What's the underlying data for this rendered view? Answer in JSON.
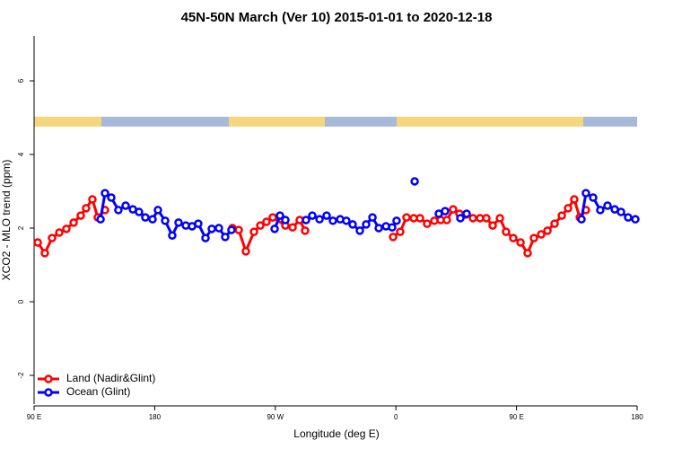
{
  "chart_data": {
    "type": "line",
    "title": "45N-50N March (Ver 10)   2015-01-01 to 2020-12-18",
    "x_label": "Longitude (deg E)",
    "y_label": "XCO2 - MLO trend (ppm)",
    "xlim": [
      90,
      540
    ],
    "ylim": [
      -2.78,
      7.22
    ],
    "xticks": [
      {
        "value": 90,
        "label": "90 E"
      },
      180,
      {
        "value": 270,
        "label": "90 W"
      },
      {
        "value": 360,
        "label": "0"
      },
      {
        "value": 450,
        "label": "90 E"
      },
      {
        "value": 540,
        "label": "180"
      }
    ],
    "yticks": [
      -2,
      0,
      2,
      4,
      6
    ],
    "legend": "bottom-left",
    "series": [
      {
        "name": "Land (Nadir&Glint)",
        "color": "#ff0000",
        "x": [
          92.7,
          98.0,
          103.4,
          108.8,
          114.1,
          119.5,
          124.8,
          128.8,
          133.5,
          137.5,
          142.9,
          null,
          238.0,
          242.7,
          248.0,
          254.1,
          258.8,
          263.4,
          268.1,
          277.5,
          282.9,
          288.2,
          292.2,
          null,
          357.9,
          363.2,
          367.9,
          373.3,
          378.0,
          383.3,
          388.7,
          393.4,
          398.0,
          402.7,
          407.4,
          412.1,
          417.5,
          422.8,
          427.5,
          432.2,
          437.6,
          442.2,
          447.6,
          453.0,
          458.3,
          463.0,
          468.4,
          473.1,
          478.4,
          483.8,
          488.5,
          493.1,
          497.2,
          501.8
        ],
        "values": [
          1.61,
          1.32,
          1.73,
          1.88,
          1.98,
          2.15,
          2.34,
          2.54,
          2.78,
          2.29,
          2.49,
          null,
          2.0,
          1.95,
          1.37,
          1.9,
          2.07,
          2.17,
          2.29,
          2.07,
          2.02,
          2.22,
          1.93,
          null,
          1.76,
          1.9,
          2.29,
          2.27,
          2.27,
          2.12,
          2.2,
          2.22,
          2.22,
          2.51,
          2.39,
          2.37,
          2.27,
          2.27,
          2.27,
          2.07,
          2.27,
          1.9,
          1.73,
          1.61,
          1.32,
          1.73,
          1.83,
          1.93,
          2.12,
          2.34,
          2.54,
          2.78,
          2.29,
          2.49
        ]
      },
      {
        "name": "Ocean (Glint)",
        "color": "#0000ff",
        "x": [
          139.6,
          142.9,
          147.6,
          152.9,
          158.3,
          163.7,
          168.3,
          173.0,
          178.4,
          182.4,
          187.8,
          193.1,
          197.8,
          203.2,
          207.9,
          212.5,
          217.9,
          222.6,
          227.9,
          232.6,
          237.3,
          null,
          269.5,
          273.5,
          277.5,
          null,
          292.9,
          297.6,
          303.0,
          308.3,
          313.0,
          318.4,
          323.0,
          327.7,
          333.1,
          337.8,
          342.5,
          347.2,
          352.6,
          357.2,
          360.5,
          null,
          374.0,
          null,
          392.0,
          396.7,
          null,
          408.1,
          412.8,
          null,
          498.5,
          501.8,
          507.2,
          512.5,
          517.9,
          523.3,
          528.0,
          533.3,
          538.7
        ],
        "values": [
          2.24,
          2.95,
          2.83,
          2.49,
          2.61,
          2.51,
          2.44,
          2.29,
          2.24,
          2.49,
          2.2,
          1.8,
          2.15,
          2.07,
          2.05,
          2.12,
          1.73,
          1.98,
          2.0,
          1.76,
          1.95,
          null,
          1.98,
          2.34,
          2.22,
          null,
          2.22,
          2.34,
          2.24,
          2.34,
          2.2,
          2.24,
          2.2,
          2.1,
          1.93,
          2.1,
          2.29,
          2.0,
          2.05,
          2.02,
          2.2,
          null,
          3.27,
          null,
          2.39,
          2.46,
          null,
          2.27,
          2.39,
          null,
          2.24,
          2.95,
          2.83,
          2.49,
          2.61,
          2.51,
          2.44,
          2.29,
          2.24
        ]
      }
    ]
  }
}
